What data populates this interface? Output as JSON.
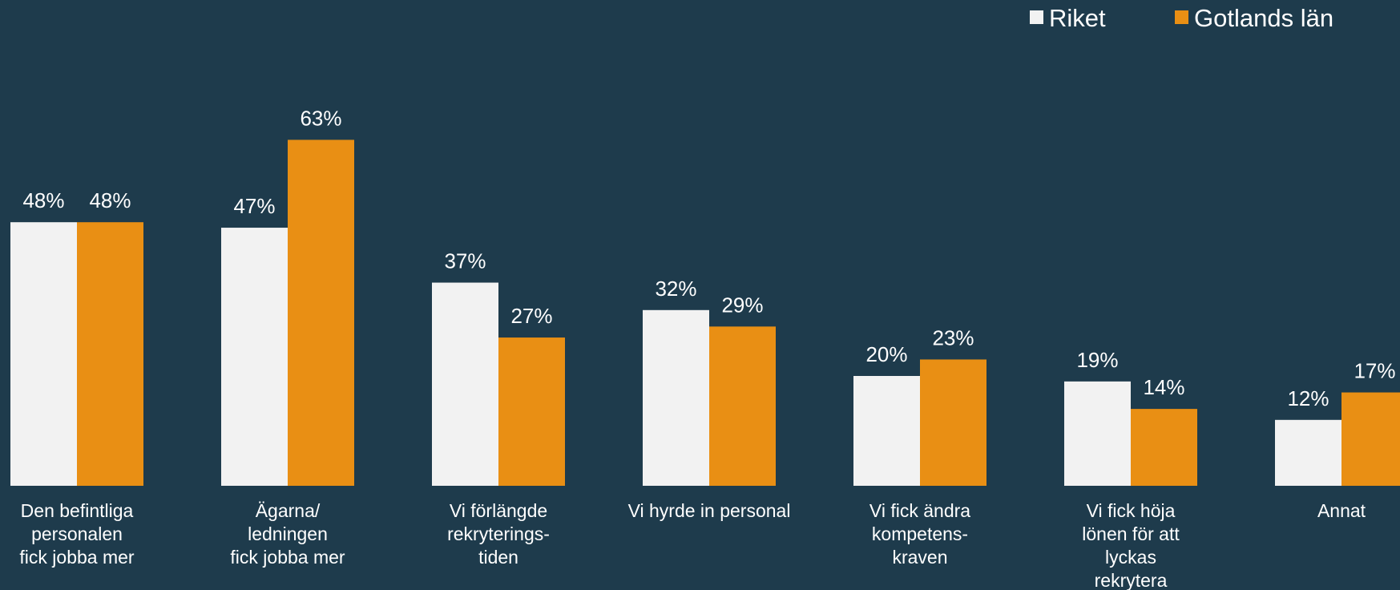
{
  "chart_data": {
    "type": "bar",
    "categories": [
      [
        "Den befintliga",
        "personalen",
        "fick jobba mer"
      ],
      [
        "Ägarna/",
        "ledningen",
        "fick jobba mer"
      ],
      [
        "Vi förlängde",
        "rekryterings-",
        "tiden"
      ],
      [
        "Vi hyrde in personal"
      ],
      [
        "Vi fick ändra",
        "kompetens-",
        "kraven"
      ],
      [
        "Vi fick höja",
        "lönen för att",
        "lyckas",
        "rekrytera"
      ],
      [
        "Annat"
      ]
    ],
    "series": [
      {
        "name": "Riket",
        "color": "#f2f2f2",
        "values": [
          48,
          47,
          37,
          32,
          20,
          19,
          12
        ],
        "labels": [
          "48%",
          "47%",
          "37%",
          "32%",
          "20%",
          "19%",
          "12%"
        ]
      },
      {
        "name": "Gotlands län",
        "color": "#e98f14",
        "values": [
          48,
          63,
          27,
          29,
          23,
          14,
          17
        ],
        "labels": [
          "48%",
          "63%",
          "27%",
          "29%",
          "23%",
          "14%",
          "17%"
        ]
      }
    ],
    "ylim": [
      0,
      70
    ],
    "grid": false,
    "legend_position": "top-right",
    "value_unit": "%"
  }
}
